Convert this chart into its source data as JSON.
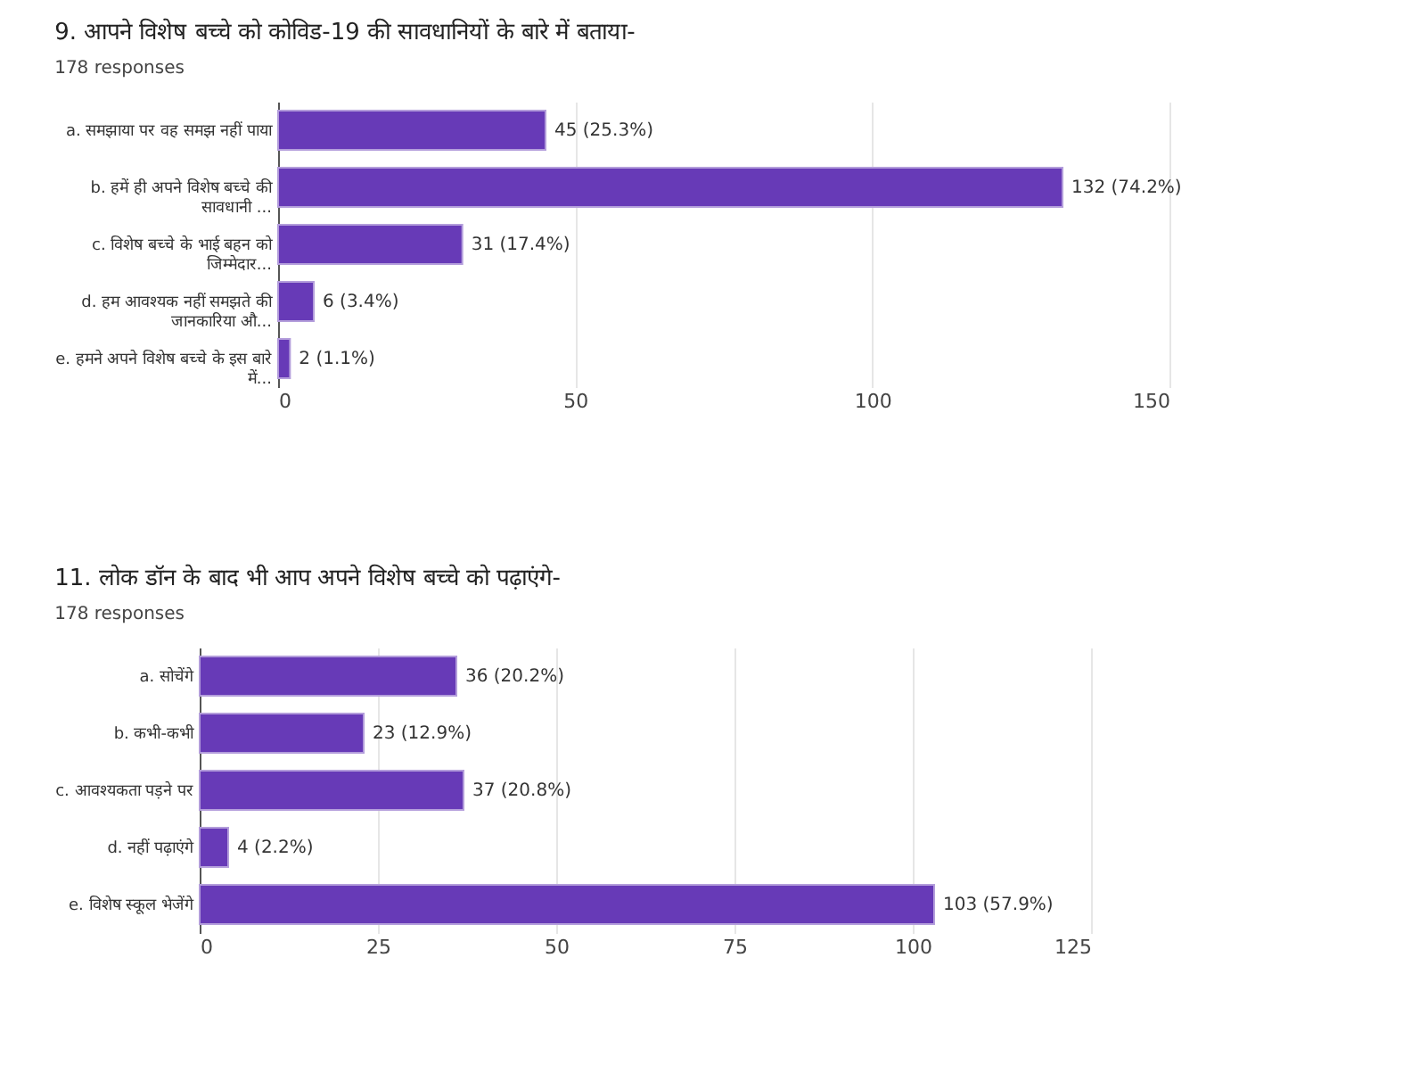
{
  "chart_data": [
    {
      "type": "bar",
      "orientation": "horizontal",
      "title": "9. आपने विशेष बच्चे को कोविड-19 की सावधानियों के बारे में बताया-",
      "subtitle": "178 responses",
      "categories": [
        "a. समझाया पर वह समझ नहीं पाया",
        "b. हमें ही अपने विशेष बच्चे की\nसावधानी ...",
        "c. विशेष बच्चे के भाई बहन को\nजिम्मेदार...",
        "d. हम आवश्यक नहीं समझते की\nजानकारिया औ...",
        "e. हमने अपने विशेष बच्चे के इस बारे\nमें..."
      ],
      "values": [
        45,
        132,
        31,
        6,
        2
      ],
      "value_labels": [
        "45 (25.3%)",
        "132 (74.2%)",
        "31 (17.4%)",
        "6 (3.4%)",
        "2 (1.1%)"
      ],
      "color": "#673ab7",
      "xlim": [
        0,
        150
      ],
      "xticks": [
        0,
        50,
        100,
        150
      ],
      "grid": "x"
    },
    {
      "type": "bar",
      "orientation": "horizontal",
      "title": "11. लोक डॉन के बाद भी आप अपने विशेष बच्चे को पढ़ाएंगे-",
      "subtitle": "178 responses",
      "categories": [
        "a. सोचेंगे",
        "b. कभी-कभी",
        "c. आवश्यकता पड़ने पर",
        "d. नहीं पढ़ाएंगे",
        "e. विशेष स्कूल भेजेंगे"
      ],
      "values": [
        36,
        23,
        37,
        4,
        103
      ],
      "value_labels": [
        "36 (20.2%)",
        "23 (12.9%)",
        "37 (20.8%)",
        "4 (2.2%)",
        "103 (57.9%)"
      ],
      "color": "#673ab7",
      "xlim": [
        0,
        125
      ],
      "xticks": [
        0,
        25,
        50,
        75,
        100,
        125
      ],
      "grid": "x"
    }
  ]
}
